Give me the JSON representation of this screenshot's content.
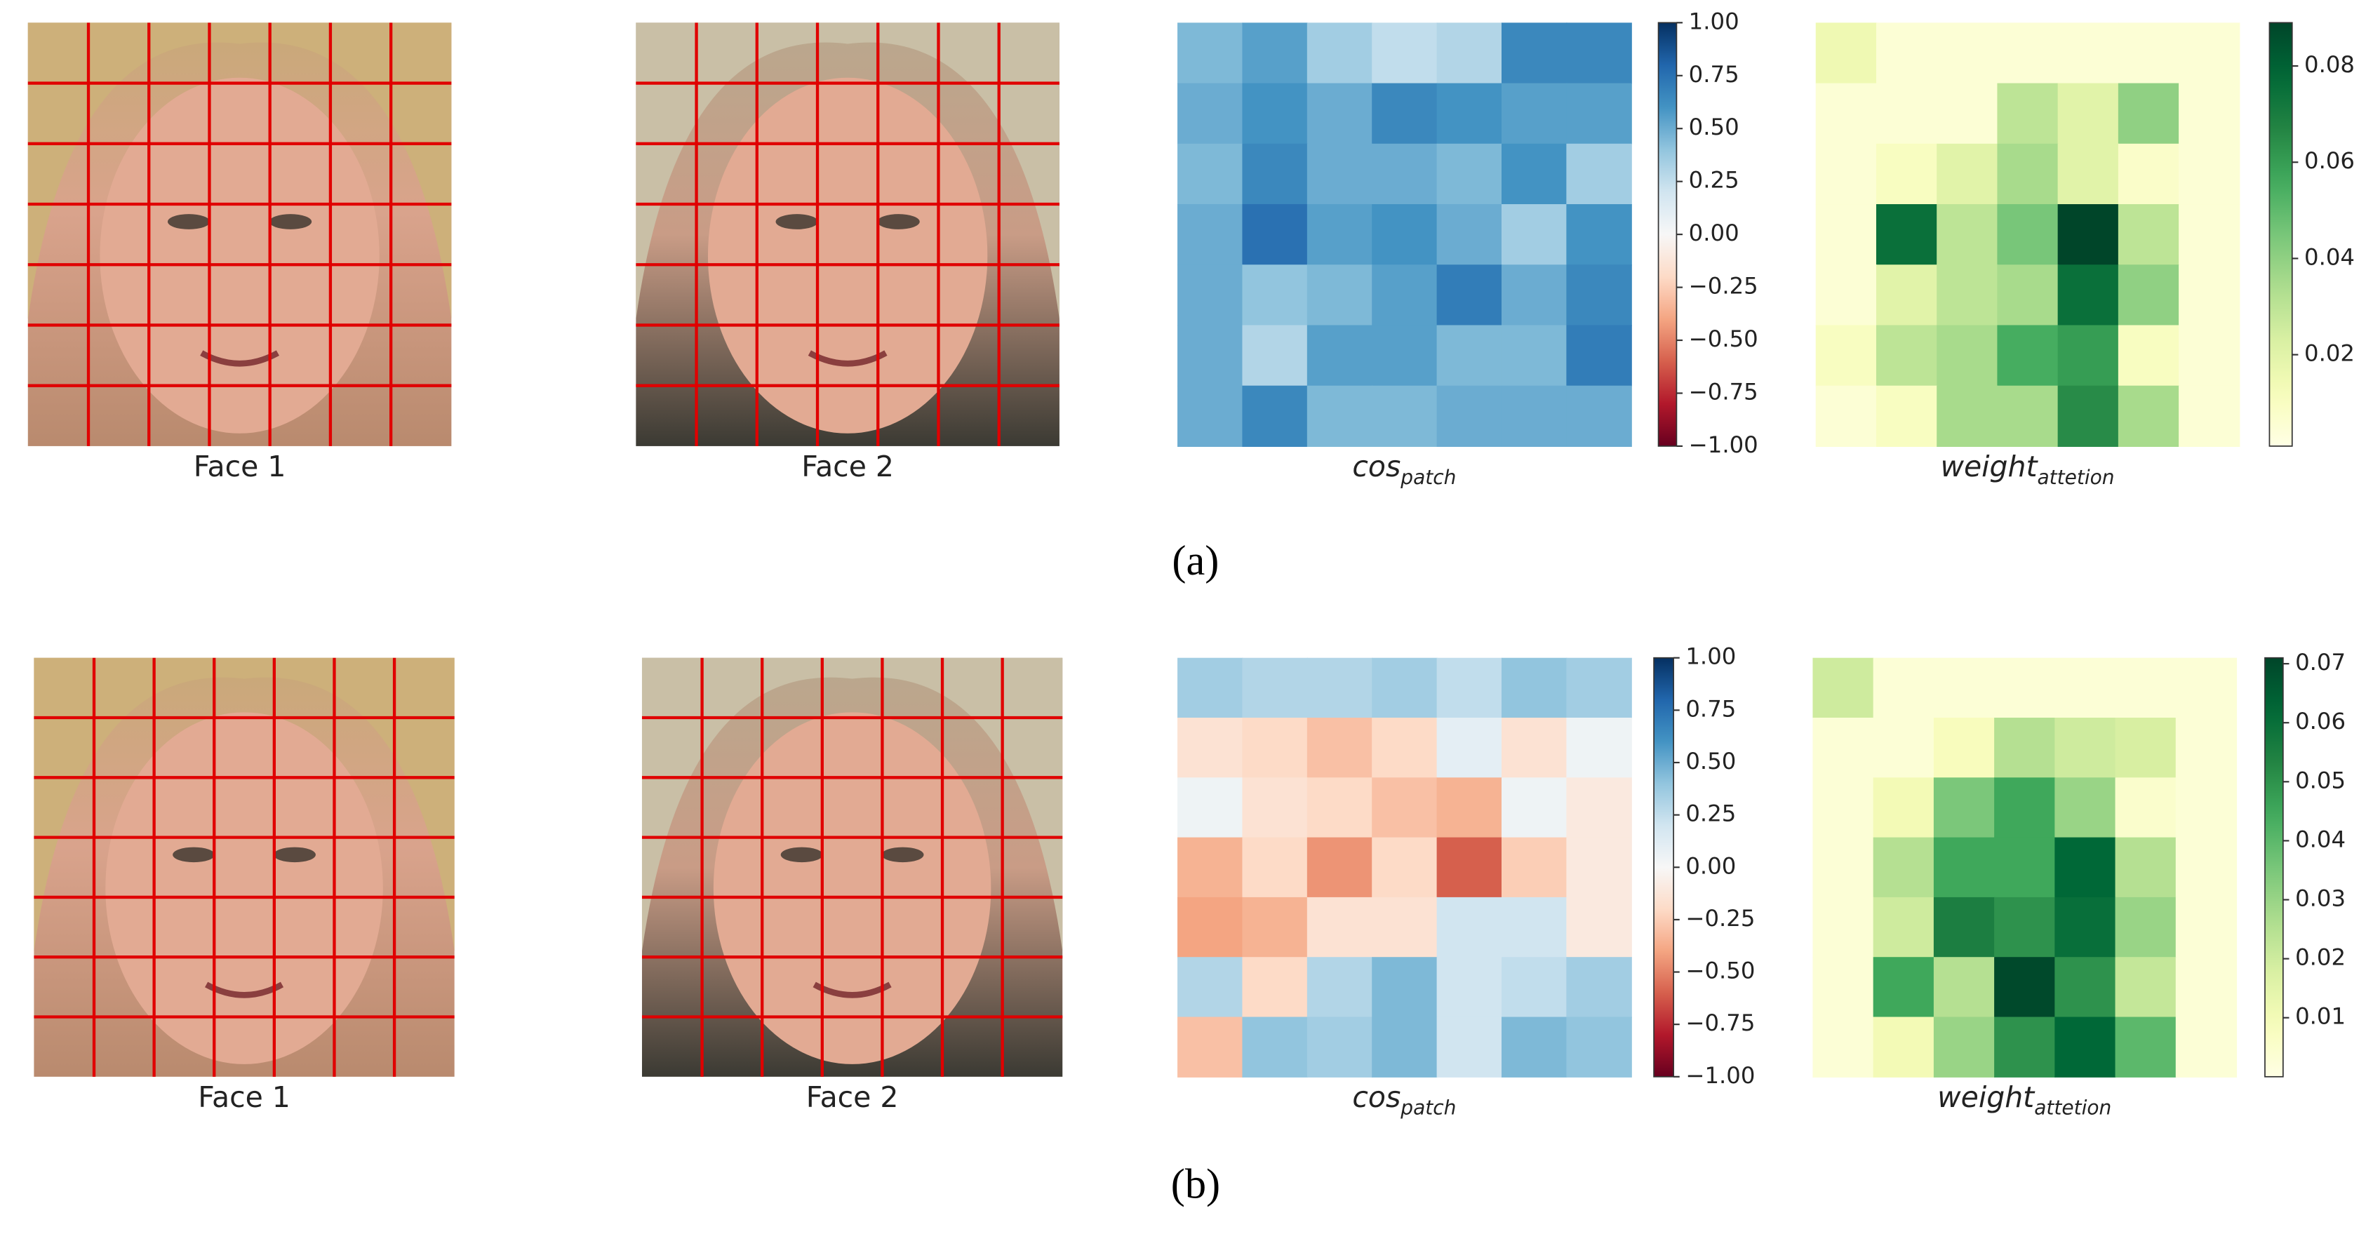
{
  "panels": [
    {
      "label": "(a)",
      "faces": [
        "Face 1",
        "Face 2"
      ]
    },
    {
      "label": "(b)",
      "faces": [
        "Face 1",
        "Face 2"
      ]
    }
  ],
  "chart_data": [
    {
      "type": "heatmap",
      "xlabel": "cos",
      "xlabel_sub": "patch",
      "colormap": "RdBu",
      "zlim": [
        -1,
        1
      ],
      "zticks": [
        {
          "value": 1,
          "label": "1.00"
        },
        {
          "value": 0.75,
          "label": "0.75"
        },
        {
          "value": 0.5,
          "label": "0.50"
        },
        {
          "value": 0.25,
          "label": "0.25"
        },
        {
          "value": 0,
          "label": "0.00"
        },
        {
          "value": -0.25,
          "label": "−0.25"
        },
        {
          "value": -0.5,
          "label": "−0.50"
        },
        {
          "value": -0.75,
          "label": "−0.75"
        },
        {
          "value": -1,
          "label": "−1.00"
        }
      ],
      "values": [
        [
          0.45,
          0.55,
          0.35,
          0.25,
          0.3,
          0.65,
          0.65
        ],
        [
          0.5,
          0.6,
          0.5,
          0.65,
          0.6,
          0.55,
          0.55
        ],
        [
          0.45,
          0.65,
          0.5,
          0.5,
          0.45,
          0.6,
          0.35
        ],
        [
          0.5,
          0.75,
          0.55,
          0.6,
          0.5,
          0.35,
          0.6
        ],
        [
          0.5,
          0.4,
          0.45,
          0.55,
          0.7,
          0.5,
          0.65
        ],
        [
          0.5,
          0.3,
          0.55,
          0.55,
          0.45,
          0.45,
          0.7
        ],
        [
          0.5,
          0.65,
          0.45,
          0.45,
          0.5,
          0.5,
          0.5
        ]
      ]
    },
    {
      "type": "heatmap",
      "xlabel": "weight",
      "xlabel_sub": "attetion",
      "colormap": "YlGn",
      "zlim": [
        0.001,
        0.089
      ],
      "zticks": [
        0.02,
        0.04,
        0.06,
        0.08
      ],
      "values": [
        [
          0.015,
          0.005,
          0.005,
          0.005,
          0.005,
          0.005,
          0.005
        ],
        [
          0.005,
          0.005,
          0.005,
          0.03,
          0.02,
          0.04,
          0.005
        ],
        [
          0.005,
          0.01,
          0.02,
          0.035,
          0.02,
          0.008,
          0.005
        ],
        [
          0.005,
          0.075,
          0.03,
          0.045,
          0.089,
          0.03,
          0.005
        ],
        [
          0.005,
          0.02,
          0.03,
          0.035,
          0.075,
          0.04,
          0.005
        ],
        [
          0.01,
          0.03,
          0.035,
          0.055,
          0.06,
          0.01,
          0.005
        ],
        [
          0.005,
          0.01,
          0.035,
          0.035,
          0.065,
          0.035,
          0.005
        ]
      ]
    },
    {
      "type": "heatmap",
      "xlabel": "cos",
      "xlabel_sub": "patch",
      "colormap": "RdBu",
      "zlim": [
        -1,
        1
      ],
      "zticks": [
        {
          "value": 1,
          "label": "1.00"
        },
        {
          "value": 0.75,
          "label": "0.75"
        },
        {
          "value": 0.5,
          "label": "0.50"
        },
        {
          "value": 0.25,
          "label": "0.25"
        },
        {
          "value": 0,
          "label": "0.00"
        },
        {
          "value": -0.25,
          "label": "−0.25"
        },
        {
          "value": -0.5,
          "label": "−0.50"
        },
        {
          "value": -0.75,
          "label": "−0.75"
        },
        {
          "value": -1,
          "label": "−1.00"
        }
      ],
      "values": [
        [
          0.35,
          0.3,
          0.3,
          0.35,
          0.25,
          0.4,
          0.35
        ],
        [
          -0.15,
          -0.2,
          -0.3,
          -0.2,
          0.1,
          -0.15,
          0.05
        ],
        [
          0.05,
          -0.15,
          -0.2,
          -0.3,
          -0.35,
          0.05,
          -0.1
        ],
        [
          -0.35,
          -0.2,
          -0.45,
          -0.2,
          -0.6,
          -0.25,
          -0.1
        ],
        [
          -0.4,
          -0.35,
          -0.15,
          -0.15,
          0.2,
          0.2,
          -0.1
        ],
        [
          0.3,
          -0.2,
          0.3,
          0.45,
          0.2,
          0.25,
          0.35
        ],
        [
          -0.3,
          0.4,
          0.35,
          0.45,
          0.2,
          0.45,
          0.4
        ]
      ]
    },
    {
      "type": "heatmap",
      "xlabel": "weight",
      "xlabel_sub": "attetion",
      "colormap": "YlGn",
      "zlim": [
        0,
        0.071
      ],
      "zticks": [
        0.01,
        0.02,
        0.03,
        0.04,
        0.05,
        0.06,
        0.07
      ],
      "values": [
        [
          0.02,
          0.003,
          0.003,
          0.003,
          0.003,
          0.003,
          0.003
        ],
        [
          0.003,
          0.003,
          0.008,
          0.025,
          0.02,
          0.018,
          0.003
        ],
        [
          0.003,
          0.01,
          0.035,
          0.045,
          0.03,
          0.005,
          0.003
        ],
        [
          0.003,
          0.025,
          0.045,
          0.045,
          0.062,
          0.025,
          0.003
        ],
        [
          0.003,
          0.02,
          0.055,
          0.05,
          0.06,
          0.03,
          0.003
        ],
        [
          0.003,
          0.045,
          0.025,
          0.07,
          0.05,
          0.022,
          0.003
        ],
        [
          0.003,
          0.01,
          0.03,
          0.05,
          0.062,
          0.04,
          0.003
        ]
      ]
    }
  ]
}
